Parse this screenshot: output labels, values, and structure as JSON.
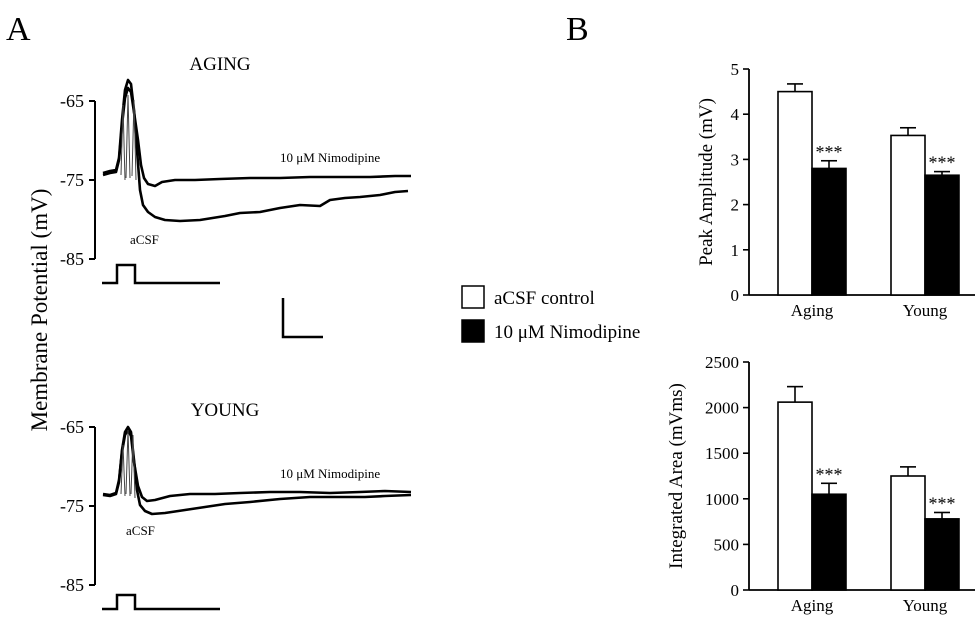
{
  "panels": {
    "a": "A",
    "b": "B"
  },
  "traces": {
    "ylabel": "Membrane Potential (mV)",
    "top": {
      "title": "AGING",
      "ticks": [
        -65,
        -75,
        -85
      ],
      "nimodipine_label": "10 μM Nimodipine",
      "acsf_label": "aCSF"
    },
    "bottom": {
      "title": "YOUNG",
      "ticks": [
        -65,
        -75,
        -85
      ],
      "nimodipine_label": "10 μM Nimodipine",
      "acsf_label": "aCSF"
    }
  },
  "legend": {
    "items": [
      {
        "label": "aCSF control",
        "color": "#ffffff"
      },
      {
        "label": "10 μM Nimodipine",
        "color": "#000000"
      }
    ]
  },
  "chart_data": [
    {
      "type": "bar",
      "title": "",
      "xlabel": "",
      "ylabel": "Peak Amplitude (mV)",
      "categories": [
        "Aging",
        "Young"
      ],
      "ylim": [
        0,
        5
      ],
      "yticks": [
        0,
        1,
        2,
        3,
        4,
        5
      ],
      "series": [
        {
          "name": "aCSF control",
          "color": "#ffffff",
          "values": [
            4.5,
            3.53
          ],
          "errors": [
            0.17,
            0.17
          ]
        },
        {
          "name": "10 μM Nimodipine",
          "color": "#000000",
          "values": [
            2.8,
            2.65
          ],
          "errors": [
            0.17,
            0.08
          ]
        }
      ],
      "annotations": [
        {
          "category": "Aging",
          "series": 1,
          "text": "***"
        },
        {
          "category": "Young",
          "series": 1,
          "text": "***"
        }
      ]
    },
    {
      "type": "bar",
      "title": "",
      "xlabel": "",
      "ylabel": "Integrated Area (mVms)",
      "categories": [
        "Aging",
        "Young"
      ],
      "ylim": [
        0,
        2500
      ],
      "yticks": [
        0,
        500,
        1000,
        1500,
        2000,
        2500
      ],
      "series": [
        {
          "name": "aCSF control",
          "color": "#ffffff",
          "values": [
            2060,
            1250
          ],
          "errors": [
            170,
            100
          ]
        },
        {
          "name": "10 μM Nimodipine",
          "color": "#000000",
          "values": [
            1050,
            780
          ],
          "errors": [
            120,
            70
          ]
        }
      ],
      "annotations": [
        {
          "category": "Aging",
          "series": 1,
          "text": "***"
        },
        {
          "category": "Young",
          "series": 1,
          "text": "***"
        }
      ]
    }
  ]
}
